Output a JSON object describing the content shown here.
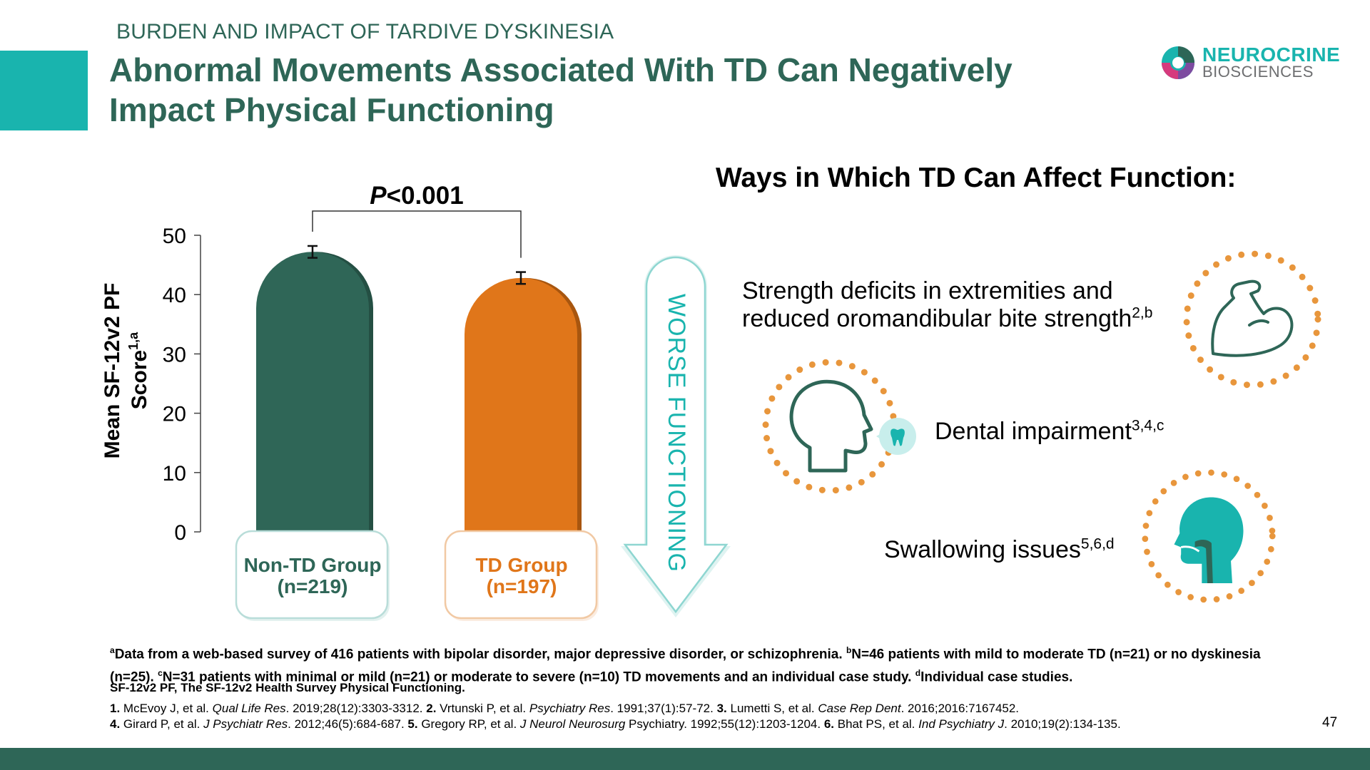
{
  "header": {
    "supertitle": "BURDEN AND IMPACT OF TARDIVE DYSKINESIA",
    "title_line1": "Abnormal Movements Associated With TD Can Negatively",
    "title_line2": "Impact Physical Functioning"
  },
  "logo": {
    "name": "NEUROCRINE",
    "sub": "BIOSCIENCES"
  },
  "chart_data": {
    "type": "bar",
    "ylabel": "Mean SF-12v2 PF Score",
    "ylabel_sup": "1,a",
    "ylim": [
      0,
      50
    ],
    "yticks": [
      "0",
      "10",
      "20",
      "30",
      "40",
      "50"
    ],
    "categories": [
      "Non-TD Group (n=219)",
      "TD Group (n=197)"
    ],
    "values": [
      47.2,
      42.8
    ],
    "error": [
      1.0,
      1.0
    ],
    "colors": [
      "#2f6657",
      "#e0761a"
    ],
    "significance": "<0.001",
    "significance_p": "P",
    "arrow_label": "WORSE FUNCTIONING"
  },
  "labels": {
    "non_td_line1": "Non-TD Group",
    "non_td_line2": "(n=219)",
    "td_line1": "TD Group",
    "td_line2": "(n=197)"
  },
  "ways": {
    "title": "Ways in Which TD Can Affect Function:",
    "strength_line1": "Strength deficits in extremities and",
    "strength_line2": "reduced oromandibular bite strength",
    "strength_sup": "2,b",
    "dental": "Dental impairment",
    "dental_sup": "3,4,c",
    "swallow": "Swallowing issues",
    "swallow_sup": "5,6,d"
  },
  "icons": {
    "strength": "flexed-arm-icon",
    "dental": "head-profile-icon",
    "tooth": "tooth-icon",
    "swallow": "throat-profile-icon"
  },
  "colors": {
    "teal": "#19b4ae",
    "dark_green": "#2e6657",
    "orange": "#e0761a",
    "dots": "#e8963c"
  },
  "footnotes": {
    "a_sup": "a",
    "a": "Data from a web-based survey of 416 patients with bipolar disorder, major depressive disorder, or schizophrenia.",
    "b_sup": "b",
    "b": "N=46 patients with mild to moderate TD (n=21) or no dyskinesia (n=25).",
    "c_sup": "c",
    "c": "N=31 patients with minimal or mild (n=21) or moderate to severe (n=10) TD movements and an individual case study.",
    "d_sup": "d",
    "d": "Individual case studies.",
    "abbrev": "SF-12v2 PF, The SF-12v2 Health Survey Physical Functioning."
  },
  "references": {
    "r1_num": "1.",
    "r1_a": "McEvoy J, et al.",
    "r1_j": "Qual Life Res",
    "r1_b": ". 2019;28(12):3303-3312.",
    "r2_num": "2.",
    "r2_a": "Vrtunski P, et al.",
    "r2_j": "Psychiatry Res",
    "r2_b": ". 1991;37(1):57-72.",
    "r3_num": "3.",
    "r3_a": "Lumetti S, et al.",
    "r3_j": "Case Rep Dent",
    "r3_b": ". 2016;2016:7167452.",
    "r4_num": "4.",
    "r4_a": "Girard P, et al.",
    "r4_j": "J Psychiatr Res",
    "r4_b": ". 2012;46(5):684-687.",
    "r5_num": "5.",
    "r5_a": "Gregory RP, et al.",
    "r5_j": "J Neurol Neurosurg",
    "r5_b": " Psychiatry. 1992;55(12):1203-1204.",
    "r6_num": "6.",
    "r6_a": "Bhat PS, et al.",
    "r6_j": "Ind Psychiatry J",
    "r6_b": ". 2010;19(2):134-135."
  },
  "page_number": "47"
}
